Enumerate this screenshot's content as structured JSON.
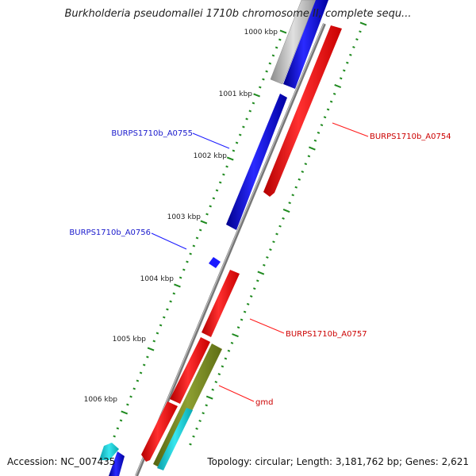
{
  "title": "Burkholderia pseudomallei 1710b chromosome II, complete sequ...",
  "ruler": {
    "labels": [
      "1000 kbp",
      "1001 kbp",
      "1002 kbp",
      "1003 kbp",
      "1004 kbp",
      "1005 kbp",
      "1006 kbp"
    ]
  },
  "genes": [
    {
      "label": "BURPS1710b_A0755",
      "strand": "forward",
      "color": "#1a1aff"
    },
    {
      "label": "BURPS1710b_A0754",
      "strand": "reverse",
      "color": "#ff1a1a"
    },
    {
      "label": "BURPS1710b_A0756",
      "strand": "forward",
      "color": "#1a1aff"
    },
    {
      "label": "BURPS1710b_A0757",
      "strand": "reverse",
      "color": "#ff1a1a"
    },
    {
      "label": "gmd",
      "strand": "reverse",
      "color": "#ff1a1a"
    }
  ],
  "feature_colors": {
    "forward_cds": "#1a1aff",
    "reverse_cds": "#ff1a1a",
    "gene_track": "#7a8c1e",
    "other_track": "#19c8d2",
    "partial_feature": "#b4b4b4",
    "backbone": "#8a8a8a",
    "gc_skew_dots": "#1f8a1f"
  },
  "footer": {
    "accession": "Accession: NC_007435",
    "topology": "Topology: circular; Length: 3,181,762 bp; Genes: 2,621"
  }
}
